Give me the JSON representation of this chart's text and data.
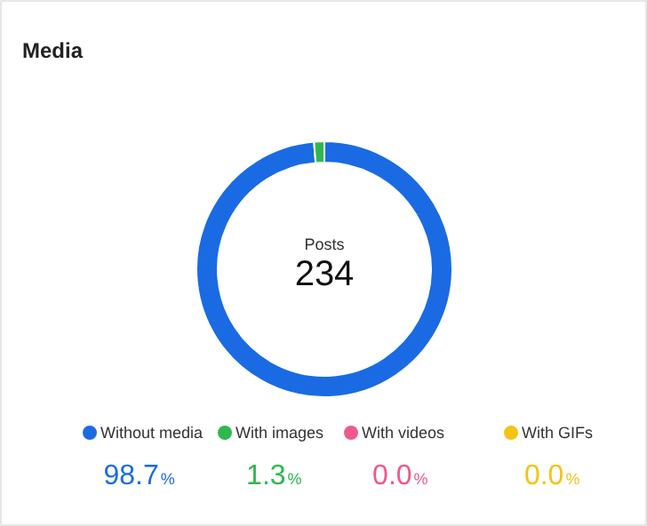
{
  "chart_data": {
    "type": "donut",
    "title": "Media",
    "categories": [
      "Without media",
      "With images",
      "With videos",
      "With GIFs"
    ],
    "values": [
      98.7,
      1.3,
      0.0,
      0.0
    ],
    "colors": [
      "#1a6be3",
      "#2fb84f",
      "#ee5a8c",
      "#f3c416"
    ],
    "value_labels": [
      "98.7%",
      "1.3%",
      "0.0%",
      "0.0%"
    ],
    "annotations": [
      "Posts",
      "234"
    ],
    "legend": "bottom"
  }
}
